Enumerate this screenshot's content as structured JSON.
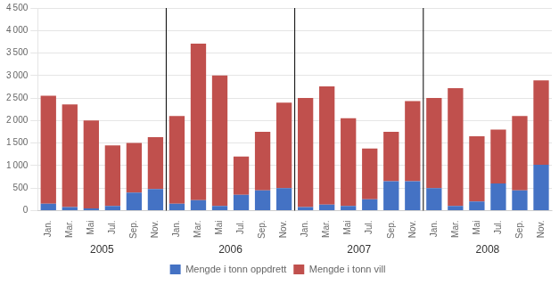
{
  "chart_data": {
    "type": "bar",
    "stacked": true,
    "categories": [
      "Jan.",
      "Mar.",
      "Mai",
      "Jul.",
      "Sep.",
      "Nov.",
      "Jan.",
      "Mar.",
      "Mai",
      "Jul.",
      "Sep.",
      "Nov.",
      "Jan.",
      "Mar.",
      "Mai",
      "Jul.",
      "Sep.",
      "Nov.",
      "Jan.",
      "Mar.",
      "Mai",
      "Jul.",
      "Sep.",
      "Nov."
    ],
    "annotations": [
      "2005",
      "2006",
      "2007",
      "2008"
    ],
    "series": [
      {
        "name": "Mengde i tonn oppdrett",
        "color": "#4472C4",
        "values": [
          150,
          80,
          50,
          100,
          400,
          480,
          150,
          230,
          100,
          350,
          450,
          500,
          80,
          130,
          100,
          250,
          650,
          650,
          500,
          100,
          200,
          600,
          450,
          1020
        ]
      },
      {
        "name": "Mengde i tonn vill",
        "color": "#C0504D",
        "values": [
          2400,
          2280,
          1950,
          1350,
          1100,
          1150,
          1950,
          3480,
          2900,
          850,
          1300,
          1900,
          2420,
          2630,
          1950,
          1130,
          1100,
          1780,
          2000,
          2620,
          1450,
          1200,
          1650,
          1870
        ]
      }
    ],
    "ylim": [
      0,
      4500
    ],
    "yticks": [
      0,
      500,
      {
        "value": 1000,
        "label": "1 000"
      },
      {
        "value": 1500,
        "label": "1 500"
      },
      {
        "value": 2000,
        "label": "2 000"
      },
      {
        "value": 2500,
        "label": "2 500"
      },
      {
        "value": 3000,
        "label": "3 000"
      },
      {
        "value": 3500,
        "label": "3 500"
      },
      {
        "value": 4000,
        "label": "4 000"
      },
      {
        "value": 4500,
        "label": "4 500"
      }
    ],
    "grid": true,
    "legend": "bottom"
  }
}
